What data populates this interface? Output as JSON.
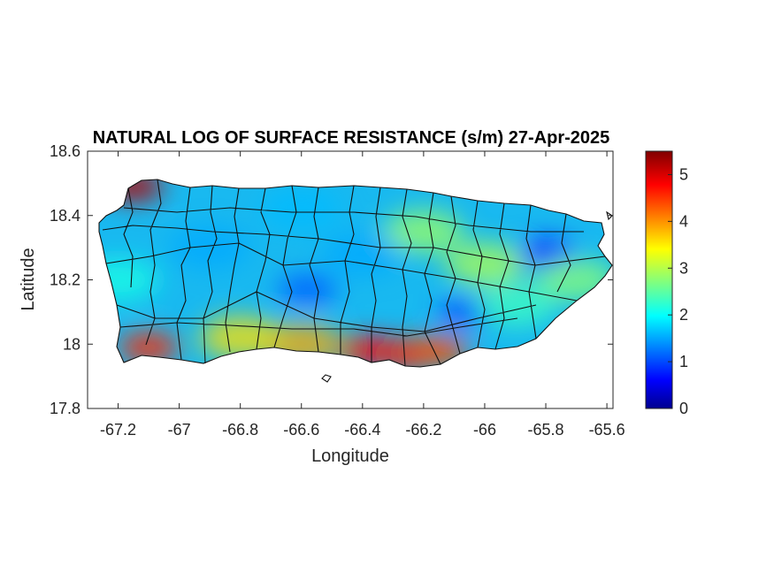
{
  "chart_data": {
    "type": "heatmap",
    "title": "NATURAL LOG OF SURFACE RESISTANCE (s/m) 27-Apr-2025",
    "xlabel": "Longitude",
    "ylabel": "Latitude",
    "xlim": [
      -67.3,
      -65.58
    ],
    "ylim": [
      17.8,
      18.6
    ],
    "xticks": [
      -67.2,
      -67,
      -66.8,
      -66.6,
      -66.4,
      -66.2,
      -66,
      -65.8,
      -65.6
    ],
    "xtick_labels": [
      "-67.2",
      "-67",
      "-66.8",
      "-66.6",
      "-66.4",
      "-66.2",
      "-66",
      "-65.8",
      "-65.6"
    ],
    "yticks": [
      17.8,
      18,
      18.2,
      18.4,
      18.6
    ],
    "ytick_labels": [
      "17.8",
      "18",
      "18.2",
      "18.4",
      "18.6"
    ],
    "colorbar": {
      "colormap": "jet",
      "clim": [
        0,
        5.5
      ],
      "ticks": [
        0,
        1,
        2,
        3,
        4,
        5
      ],
      "tick_labels": [
        "0",
        "1",
        "2",
        "3",
        "4",
        "5"
      ]
    },
    "grid": false,
    "field_description_points": [
      {
        "lon": -67.15,
        "lat": 18.49,
        "value": 5.2
      },
      {
        "lon": -67.1,
        "lat": 17.99,
        "value": 4.6
      },
      {
        "lon": -66.38,
        "lat": 17.98,
        "value": 4.8
      },
      {
        "lon": -66.25,
        "lat": 17.97,
        "value": 4.7
      },
      {
        "lon": -66.15,
        "lat": 17.98,
        "value": 4.4
      },
      {
        "lon": -66.6,
        "lat": 18.0,
        "value": 3.9
      },
      {
        "lon": -66.8,
        "lat": 18.02,
        "value": 3.6
      },
      {
        "lon": -65.8,
        "lat": 18.28,
        "value": 0.8
      },
      {
        "lon": -66.05,
        "lat": 18.1,
        "value": 1.1
      },
      {
        "lon": -66.58,
        "lat": 18.17,
        "value": 1.2
      },
      {
        "lon": -66.9,
        "lat": 18.3,
        "value": 1.6
      },
      {
        "lon": -66.2,
        "lat": 18.35,
        "value": 2.9
      },
      {
        "lon": -66.0,
        "lat": 18.25,
        "value": 3.0
      },
      {
        "lon": -65.7,
        "lat": 18.2,
        "value": 2.8
      },
      {
        "lon": -66.6,
        "lat": 18.42,
        "value": 1.7
      },
      {
        "lon": -67.2,
        "lat": 18.2,
        "value": 2.2
      },
      {
        "lon": -66.4,
        "lat": 18.28,
        "value": 1.6
      },
      {
        "lon": -65.9,
        "lat": 18.12,
        "value": 2.4
      }
    ]
  }
}
